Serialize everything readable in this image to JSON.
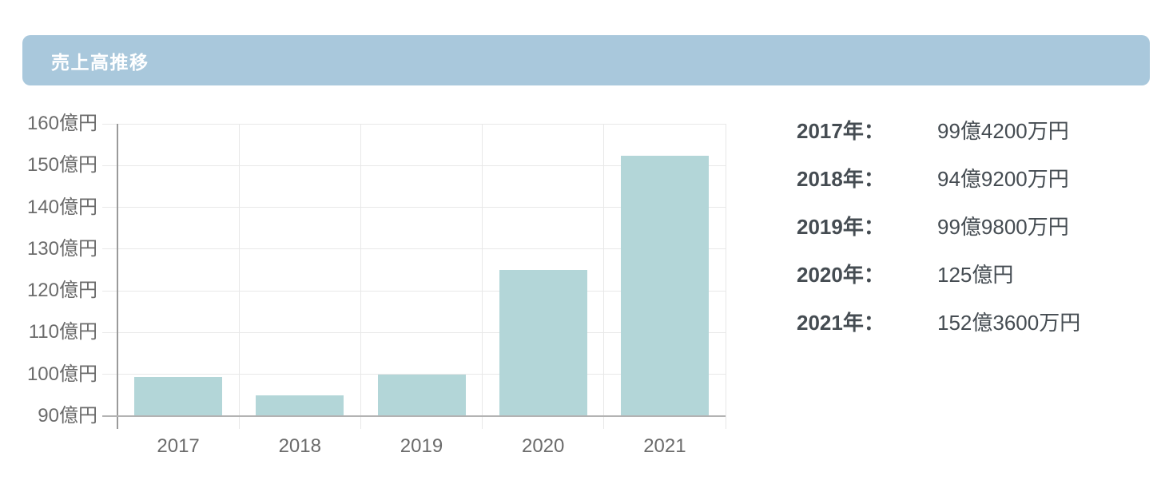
{
  "header": {
    "title": "売上高推移"
  },
  "colors": {
    "banner_bg": "#a9c8dc",
    "banner_text": "#ffffff",
    "bar_fill": "#b3d6d8",
    "grid_light": "#e8e8e8",
    "grid_dark": "#b3b3b3",
    "axis_dark": "#9a9a9a",
    "tick_text": "#6b6b6b",
    "list_text": "#454c52"
  },
  "chart_data": {
    "type": "bar",
    "title": "売上高推移",
    "categories": [
      "2017",
      "2018",
      "2019",
      "2020",
      "2021"
    ],
    "values": [
      99.42,
      94.92,
      99.98,
      125,
      152.36
    ],
    "unit": "億円",
    "xlabel": "",
    "ylabel": "",
    "ylim": [
      90,
      160
    ],
    "ytick_step": 10,
    "ytick_labels": [
      "160億円",
      "150億円",
      "140億円",
      "130億円",
      "120億円",
      "110億円",
      "100億円",
      "90億円"
    ],
    "grid": true,
    "legend_position": "none",
    "bar_base": 90
  },
  "value_list": {
    "items": [
      {
        "year": "2017年：",
        "value": "99億4200万円"
      },
      {
        "year": "2018年：",
        "value": "94億9200万円"
      },
      {
        "year": "2019年：",
        "value": "99億9800万円"
      },
      {
        "year": "2020年：",
        "value": "125億円"
      },
      {
        "year": "2021年：",
        "value": "152億3600万円"
      }
    ]
  }
}
